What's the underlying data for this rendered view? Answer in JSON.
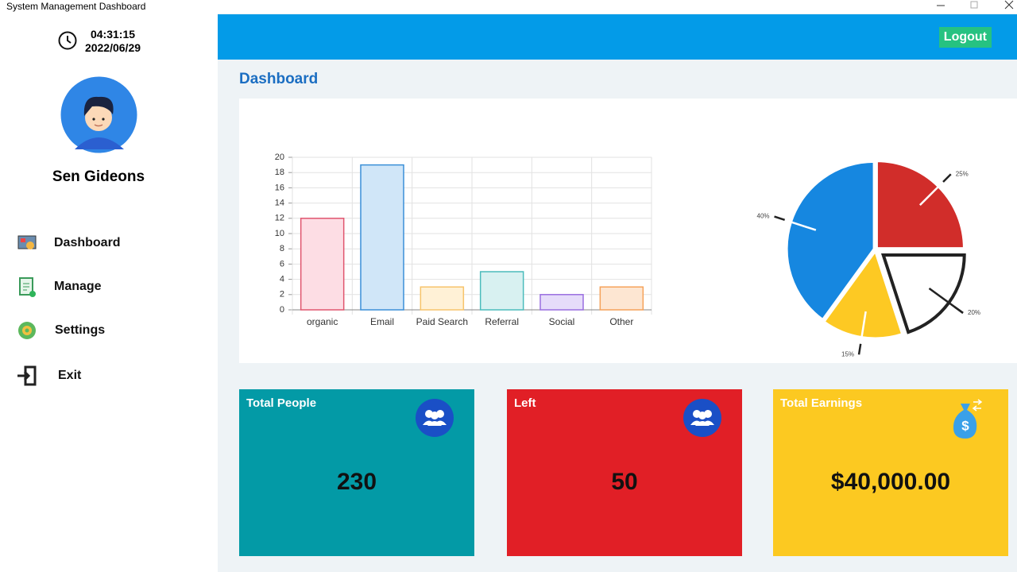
{
  "window": {
    "title": "System Management Dashboard"
  },
  "sidebar": {
    "time": "04:31:15",
    "date": "2022/06/29",
    "user_name": "Sen Gideons",
    "nav": [
      "Dashboard",
      "Manage",
      "Settings",
      "Exit"
    ]
  },
  "header": {
    "logout": "Logout"
  },
  "page_title": "Dashboard",
  "chart_data": [
    {
      "type": "bar",
      "categories": [
        "organic",
        "Email",
        "Paid Search",
        "Referral",
        "Social",
        "Other"
      ],
      "values": [
        12,
        19,
        3,
        5,
        2,
        3
      ],
      "colors": [
        "#fddde4",
        "#d0e6f8",
        "#fff1d6",
        "#d8f1f1",
        "#e6dcfa",
        "#fde6d2"
      ],
      "border_colors": [
        "#e0566f",
        "#3a8fd8",
        "#f7c46b",
        "#4bbcbc",
        "#9a6ee0",
        "#f5a25a"
      ],
      "ylim": [
        0,
        20
      ],
      "yticks": [
        0,
        2,
        4,
        6,
        8,
        10,
        12,
        14,
        16,
        18,
        20
      ],
      "grid": true
    },
    {
      "type": "pie",
      "values": [
        25,
        20,
        15,
        40
      ],
      "value_labels": [
        "25%",
        "20%",
        "15%",
        "40%"
      ],
      "colors": [
        "#d12d2a",
        "#ffffff",
        "#fdc923",
        "#1687e0"
      ],
      "exploded": [
        false,
        true,
        false,
        false
      ]
    }
  ],
  "cards": [
    {
      "title": "Total People",
      "value": "230",
      "color": "#039aa6"
    },
    {
      "title": "Left",
      "value": "50",
      "color": "#e11f26"
    },
    {
      "title": "Total Earnings",
      "value": "$40,000.00",
      "color": "#fcc921"
    }
  ]
}
